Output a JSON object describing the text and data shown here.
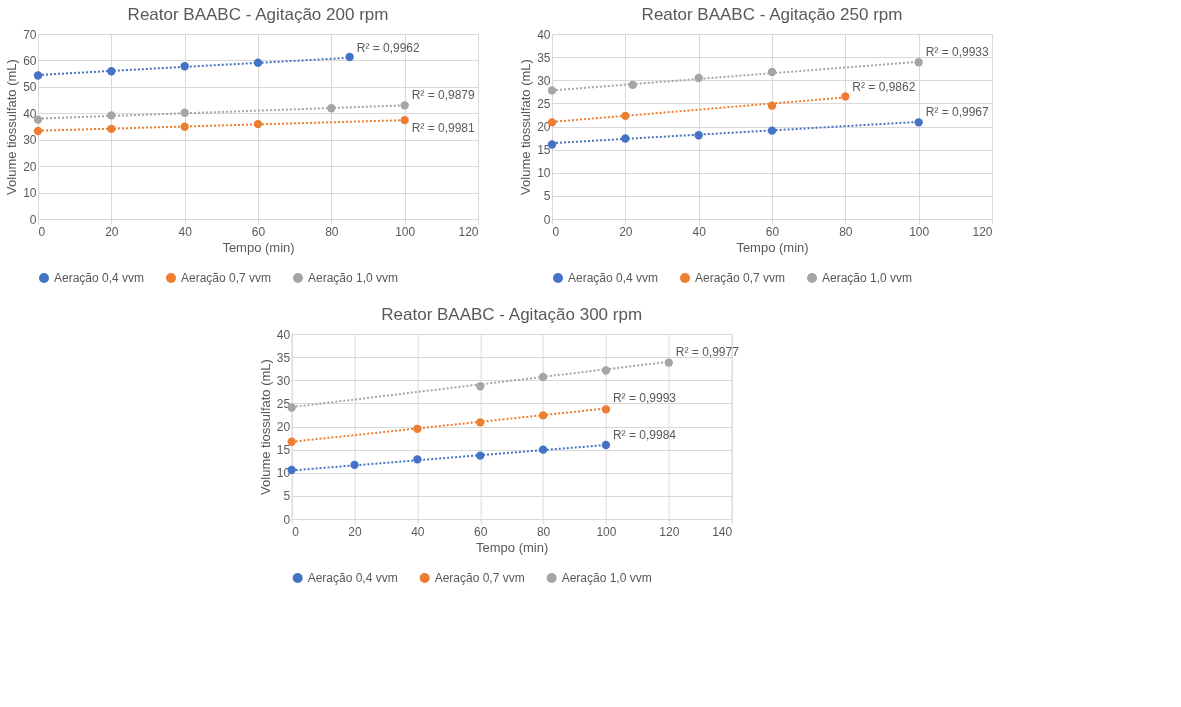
{
  "chart_data": [
    {
      "type": "scatter",
      "title": "Reator BAABC - Agitação 200 rpm",
      "xlabel": "Tempo (min)",
      "ylabel": "Volume tiossulfato (mL)",
      "xlim": [
        0,
        120
      ],
      "xticks": [
        0,
        20,
        40,
        60,
        80,
        100,
        120
      ],
      "ylim": [
        0,
        70
      ],
      "yticks": [
        0,
        10,
        20,
        30,
        40,
        50,
        60,
        70
      ],
      "grid": true,
      "legend": "bottom",
      "marker": "circle",
      "series": [
        {
          "name": "Aeração 0,4 vvm",
          "color": "#4472c4",
          "x": [
            0,
            20,
            40,
            60,
            85
          ],
          "values": [
            54.3,
            55.9,
            57.8,
            59.1,
            61.3
          ]
        },
        {
          "name": "Aeração 0,7 vvm",
          "color": "#ed7d31",
          "x": [
            0,
            20,
            40,
            60,
            100
          ],
          "values": [
            33.3,
            34.1,
            34.9,
            35.9,
            37.4
          ]
        },
        {
          "name": "Aeração 1,0 vvm",
          "color": "#a5a5a5",
          "x": [
            0,
            20,
            40,
            80,
            100
          ],
          "values": [
            37.6,
            39.2,
            40.2,
            41.9,
            43.0
          ]
        },
        {
          "type": "line",
          "line_style": "dotted",
          "marker": "none",
          "color": "#4472c4",
          "x": [
            0,
            85
          ],
          "values": [
            54.5,
            61.0
          ]
        },
        {
          "type": "line",
          "line_style": "dotted",
          "marker": "none",
          "color": "#a5a5a5",
          "x": [
            0,
            100
          ],
          "values": [
            38.0,
            43.0
          ]
        },
        {
          "type": "line",
          "line_style": "dotted",
          "marker": "none",
          "color": "#ed7d31",
          "x": [
            0,
            100
          ],
          "values": [
            33.4,
            37.4
          ]
        }
      ],
      "annotations": [
        "R² = 0,9962",
        "R² = 0,9879",
        "R² = 0,9981"
      ]
    },
    {
      "type": "scatter",
      "title": "Reator BAABC - Agitação 250 rpm",
      "xlabel": "Tempo (min)",
      "ylabel": "Volume tiossulfato (mL)",
      "xlim": [
        0,
        120
      ],
      "xticks": [
        0,
        20,
        40,
        60,
        80,
        100,
        120
      ],
      "ylim": [
        0,
        40
      ],
      "yticks": [
        0,
        5,
        10,
        15,
        20,
        25,
        30,
        35,
        40
      ],
      "grid": true,
      "legend": "bottom",
      "marker": "circle",
      "series": [
        {
          "name": "Aeração 0,4 vvm",
          "color": "#4472c4",
          "x": [
            0,
            20,
            40,
            60,
            100
          ],
          "values": [
            16.1,
            17.4,
            18.1,
            19.1,
            20.9
          ]
        },
        {
          "name": "Aeração 0,7 vvm",
          "color": "#ed7d31",
          "x": [
            0,
            20,
            60,
            80
          ],
          "values": [
            20.9,
            22.3,
            24.5,
            26.5
          ]
        },
        {
          "name": "Aeração 1,0 vvm",
          "color": "#a5a5a5",
          "x": [
            0,
            22,
            40,
            60,
            100
          ],
          "values": [
            27.8,
            29.0,
            30.5,
            31.8,
            33.9
          ]
        },
        {
          "type": "line",
          "line_style": "dotted",
          "marker": "none",
          "color": "#a5a5a5",
          "x": [
            0,
            100
          ],
          "values": [
            27.8,
            34.0
          ]
        },
        {
          "type": "line",
          "line_style": "dotted",
          "marker": "none",
          "color": "#ed7d31",
          "x": [
            0,
            80
          ],
          "values": [
            21.0,
            26.3
          ]
        },
        {
          "type": "line",
          "line_style": "dotted",
          "marker": "none",
          "color": "#4472c4",
          "x": [
            0,
            100
          ],
          "values": [
            16.4,
            21.0
          ]
        }
      ],
      "annotations": [
        "R² = 0,9933",
        "R² = 0,9862",
        "R² = 0,9967"
      ]
    },
    {
      "type": "scatter",
      "title": "Reator BAABC - Agitação 300 rpm",
      "xlabel": "Tempo (min)",
      "ylabel": "Volume tiossulfato (mL)",
      "xlim": [
        0,
        140
      ],
      "xticks": [
        0,
        20,
        40,
        60,
        80,
        100,
        120,
        140
      ],
      "ylim": [
        0,
        40
      ],
      "yticks": [
        0,
        5,
        10,
        15,
        20,
        25,
        30,
        35,
        40
      ],
      "grid": true,
      "legend": "bottom",
      "marker": "circle",
      "series": [
        {
          "name": "Aeração 0,4 vvm",
          "color": "#4472c4",
          "x": [
            0,
            20,
            40,
            60,
            80,
            100
          ],
          "values": [
            10.6,
            11.7,
            12.9,
            13.7,
            15.0,
            16.0
          ]
        },
        {
          "name": "Aeração 0,7 vvm",
          "color": "#ed7d31",
          "x": [
            0,
            40,
            60,
            80,
            100
          ],
          "values": [
            16.7,
            19.5,
            20.9,
            22.4,
            23.7
          ]
        },
        {
          "name": "Aeração 1,0 vvm",
          "color": "#a5a5a5",
          "x": [
            0,
            60,
            80,
            100,
            120
          ],
          "values": [
            24.1,
            28.7,
            30.7,
            32.1,
            33.8
          ]
        },
        {
          "type": "line",
          "line_style": "dotted",
          "marker": "none",
          "color": "#a5a5a5",
          "x": [
            0,
            120
          ],
          "values": [
            24.2,
            34.0
          ]
        },
        {
          "type": "line",
          "line_style": "dotted",
          "marker": "none",
          "color": "#ed7d31",
          "x": [
            0,
            100
          ],
          "values": [
            16.7,
            23.9
          ]
        },
        {
          "type": "line",
          "line_style": "dotted",
          "marker": "none",
          "color": "#4472c4",
          "x": [
            0,
            100
          ],
          "values": [
            10.5,
            16.0
          ]
        }
      ],
      "annotations": [
        "R² = 0,9977",
        "R² = 0,9993",
        "R² = 0,9984"
      ]
    }
  ]
}
